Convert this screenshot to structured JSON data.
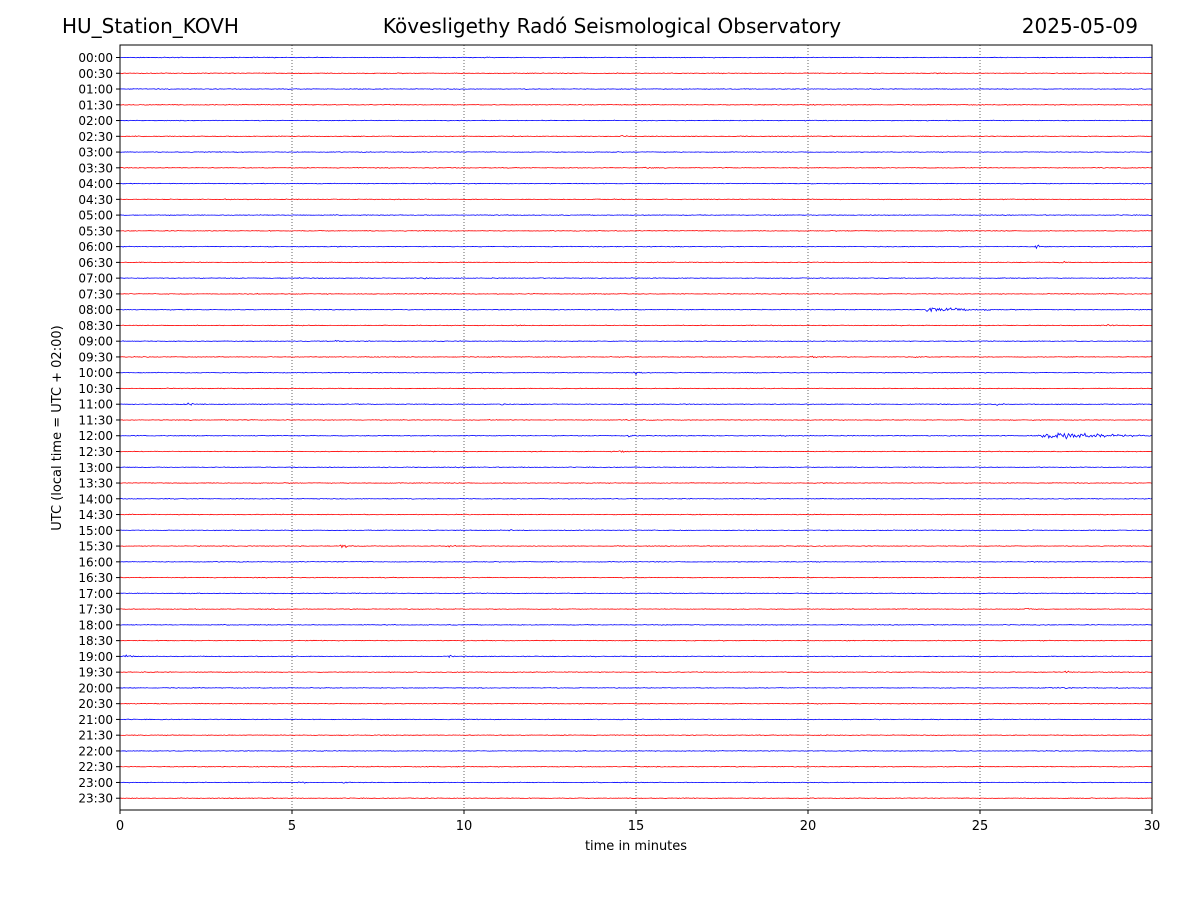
{
  "header": {
    "station": "HU_Station_KOVH",
    "observatory": "Kövesligethy Radó Seismological Observatory",
    "date": "2025-05-09"
  },
  "chart_data": {
    "type": "line",
    "title": "Kövesligethy Radó Seismological Observatory",
    "xlabel": "time in minutes",
    "ylabel": "UTC (local time = UTC + 02:00)",
    "xlim": [
      0,
      30
    ],
    "xticks": [
      0,
      5,
      10,
      15,
      20,
      25,
      30
    ],
    "grid": "vertical dotted at x ticks",
    "colors": {
      "even_rows": "#0000ff",
      "odd_rows": "#ff0000"
    },
    "rows": [
      "00:00",
      "00:30",
      "01:00",
      "01:30",
      "02:00",
      "02:30",
      "03:00",
      "03:30",
      "04:00",
      "04:30",
      "05:00",
      "05:30",
      "06:00",
      "06:30",
      "07:00",
      "07:30",
      "08:00",
      "08:30",
      "09:00",
      "09:30",
      "10:00",
      "10:30",
      "11:00",
      "11:30",
      "12:00",
      "12:30",
      "13:00",
      "13:30",
      "14:00",
      "14:30",
      "15:00",
      "15:30",
      "16:00",
      "16:30",
      "17:00",
      "17:30",
      "18:00",
      "18:30",
      "19:00",
      "19:30",
      "20:00",
      "20:30",
      "21:00",
      "21:30",
      "22:00",
      "22:30",
      "23:00",
      "23:30"
    ],
    "events": [
      {
        "row": "02:30",
        "minute": 14.5,
        "amp": 0.35,
        "dur": 0.3
      },
      {
        "row": "02:30",
        "minute": 11.5,
        "amp": 0.25,
        "dur": 0.3
      },
      {
        "row": "03:30",
        "minute": 15.3,
        "amp": 0.4,
        "dur": 0.2
      },
      {
        "row": "04:00",
        "minute": 9.0,
        "amp": 0.45,
        "dur": 0.2
      },
      {
        "row": "04:30",
        "minute": 17.0,
        "amp": 0.3,
        "dur": 0.4
      },
      {
        "row": "06:00",
        "minute": 26.7,
        "amp": 0.9,
        "dur": 0.15
      },
      {
        "row": "06:30",
        "minute": 27.4,
        "amp": 0.35,
        "dur": 0.3
      },
      {
        "row": "07:00",
        "minute": 8.9,
        "amp": 0.4,
        "dur": 0.2
      },
      {
        "row": "08:00",
        "minute": 23.5,
        "amp": 1.3,
        "dur": 2.0
      },
      {
        "row": "08:30",
        "minute": 28.6,
        "amp": 0.4,
        "dur": 0.4
      },
      {
        "row": "09:00",
        "minute": 6.3,
        "amp": 0.3,
        "dur": 0.2
      },
      {
        "row": "09:30",
        "minute": 20.2,
        "amp": 0.5,
        "dur": 0.4
      },
      {
        "row": "09:30",
        "minute": 23.1,
        "amp": 0.4,
        "dur": 0.5
      },
      {
        "row": "10:00",
        "minute": 15.0,
        "amp": 0.45,
        "dur": 0.5
      },
      {
        "row": "11:00",
        "minute": 2.0,
        "amp": 0.4,
        "dur": 0.5
      },
      {
        "row": "11:00",
        "minute": 11.1,
        "amp": 0.35,
        "dur": 0.3
      },
      {
        "row": "11:00",
        "minute": 25.5,
        "amp": 0.35,
        "dur": 0.4
      },
      {
        "row": "12:00",
        "minute": 14.8,
        "amp": 0.5,
        "dur": 0.4
      },
      {
        "row": "12:00",
        "minute": 26.8,
        "amp": 1.9,
        "dur": 3.2
      },
      {
        "row": "12:30",
        "minute": 9.1,
        "amp": 0.45,
        "dur": 0.3
      },
      {
        "row": "12:30",
        "minute": 14.6,
        "amp": 0.45,
        "dur": 0.3
      },
      {
        "row": "13:00",
        "minute": 7.7,
        "amp": 0.35,
        "dur": 0.2
      },
      {
        "row": "15:00",
        "minute": 11.4,
        "amp": 0.45,
        "dur": 0.2
      },
      {
        "row": "15:30",
        "minute": 6.5,
        "amp": 0.9,
        "dur": 0.3
      },
      {
        "row": "15:30",
        "minute": 9.5,
        "amp": 0.3,
        "dur": 0.5
      },
      {
        "row": "17:00",
        "minute": 1.8,
        "amp": 0.4,
        "dur": 0.2
      },
      {
        "row": "17:30",
        "minute": 26.4,
        "amp": 0.7,
        "dur": 0.15
      },
      {
        "row": "19:00",
        "minute": 0.2,
        "amp": 0.45,
        "dur": 0.3
      },
      {
        "row": "19:00",
        "minute": 9.6,
        "amp": 0.45,
        "dur": 0.2
      },
      {
        "row": "19:30",
        "minute": 27.5,
        "amp": 0.35,
        "dur": 0.4
      },
      {
        "row": "20:00",
        "minute": 27.0,
        "amp": 0.35,
        "dur": 2.0
      },
      {
        "row": "20:00",
        "minute": 29.0,
        "amp": 0.3,
        "dur": 1.0
      },
      {
        "row": "23:00",
        "minute": 5.2,
        "amp": 0.35,
        "dur": 0.5
      },
      {
        "row": "23:00",
        "minute": 6.5,
        "amp": 0.3,
        "dur": 0.3
      }
    ]
  }
}
